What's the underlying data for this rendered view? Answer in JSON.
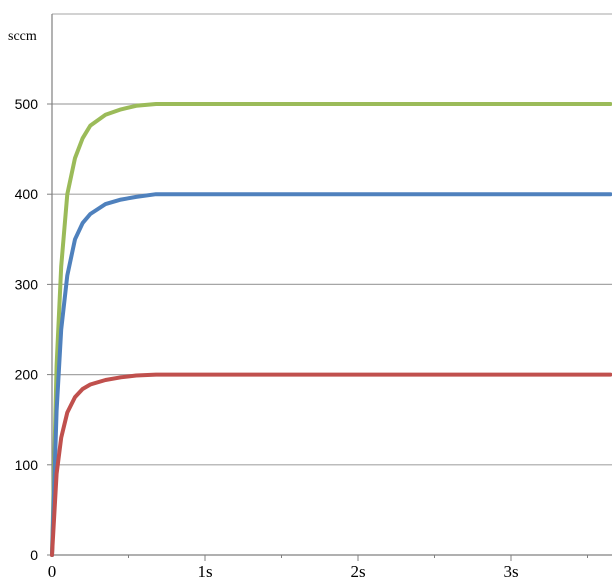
{
  "chart_data": {
    "type": "line",
    "ylabel": "sccm",
    "xlabel": "",
    "xlim": [
      0,
      3.65
    ],
    "ylim": [
      0,
      600
    ],
    "y_ticks": [
      "0",
      "100",
      "200",
      "300",
      "400",
      "500"
    ],
    "y_tick_values": [
      0,
      100,
      200,
      300,
      400,
      500
    ],
    "x_ticks": [
      "0",
      "1s",
      "2s",
      "3s"
    ],
    "x_tick_values": [
      0,
      1,
      2,
      3
    ],
    "grid": true,
    "legend": "none",
    "series": [
      {
        "color": "#9bbb59",
        "points": [
          [
            0,
            0
          ],
          [
            0.03,
            210
          ],
          [
            0.06,
            320
          ],
          [
            0.1,
            400
          ],
          [
            0.15,
            440
          ],
          [
            0.2,
            462
          ],
          [
            0.25,
            476
          ],
          [
            0.35,
            488
          ],
          [
            0.45,
            494
          ],
          [
            0.55,
            498
          ],
          [
            0.68,
            500
          ],
          [
            1.0,
            500
          ],
          [
            2.0,
            500
          ],
          [
            3.0,
            500
          ],
          [
            3.65,
            500
          ]
        ]
      },
      {
        "color": "#4f81bd",
        "points": [
          [
            0,
            0
          ],
          [
            0.03,
            160
          ],
          [
            0.06,
            250
          ],
          [
            0.1,
            310
          ],
          [
            0.15,
            350
          ],
          [
            0.2,
            368
          ],
          [
            0.25,
            378
          ],
          [
            0.35,
            389
          ],
          [
            0.45,
            394
          ],
          [
            0.55,
            397
          ],
          [
            0.68,
            400
          ],
          [
            1.0,
            400
          ],
          [
            2.0,
            400
          ],
          [
            3.0,
            400
          ],
          [
            3.65,
            400
          ]
        ]
      },
      {
        "color": "#c0504d",
        "points": [
          [
            0,
            0
          ],
          [
            0.03,
            90
          ],
          [
            0.06,
            130
          ],
          [
            0.1,
            158
          ],
          [
            0.15,
            175
          ],
          [
            0.2,
            184
          ],
          [
            0.25,
            189
          ],
          [
            0.35,
            194
          ],
          [
            0.45,
            197
          ],
          [
            0.55,
            199
          ],
          [
            0.68,
            200
          ],
          [
            1.0,
            200
          ],
          [
            2.0,
            200
          ],
          [
            3.0,
            200
          ],
          [
            3.65,
            200
          ]
        ]
      }
    ]
  },
  "colors": {
    "gridline": "#a6a6a6",
    "axis": "#808080"
  }
}
